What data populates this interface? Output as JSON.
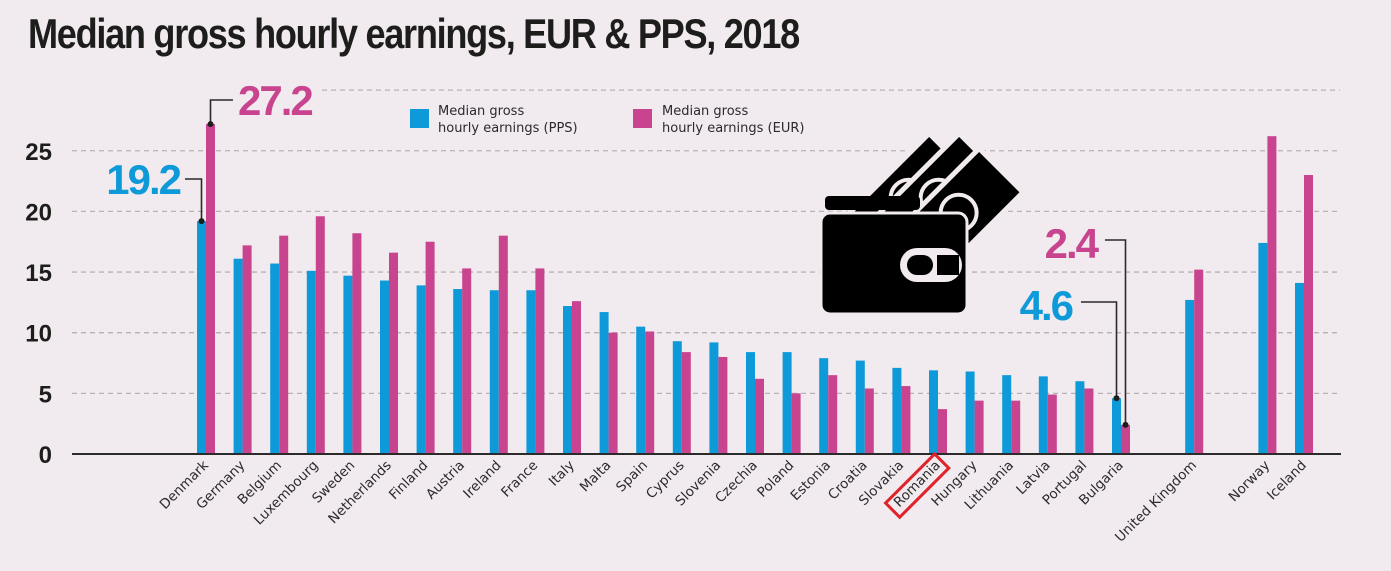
{
  "colors": {
    "pps": "#0e9ad9",
    "eur": "#c9448f",
    "text": "#1d1d1b",
    "gridline": "#b7b2b5",
    "highlight": "#e0222a",
    "background": "#f1eaee"
  },
  "chart_data": {
    "type": "bar",
    "title": "Median gross hourly earnings, EUR & PPS, 2018",
    "xlabel": "",
    "ylabel": "",
    "ylim": [
      0,
      30
    ],
    "yticks": [
      0,
      5,
      10,
      15,
      20,
      25
    ],
    "grid": true,
    "legend_position": "top-center",
    "categories": [
      "Denmark",
      "Germany",
      "Belgium",
      "Luxembourg",
      "Sweden",
      "Netherlands",
      "Finland",
      "Austria",
      "Ireland",
      "France",
      "Italy",
      "Malta",
      "Spain",
      "Cyprus",
      "Slovenia",
      "Czechia",
      "Poland",
      "Estonia",
      "Croatia",
      "Slovakia",
      "Romania",
      "Hungary",
      "Lithuania",
      "Latvia",
      "Portugal",
      "Bulgaria",
      "United Kingdom",
      "Norway",
      "Iceland"
    ],
    "group_gaps_before": {
      "United Kingdom": 1,
      "Norway": 1
    },
    "series": [
      {
        "name": "Median gross hourly earnings (PPS)",
        "key": "pps",
        "values": [
          19.2,
          16.1,
          15.7,
          15.1,
          14.7,
          14.3,
          13.9,
          13.6,
          13.5,
          13.5,
          12.2,
          11.7,
          10.5,
          9.3,
          9.2,
          8.4,
          8.4,
          7.9,
          7.7,
          7.1,
          6.9,
          6.8,
          6.5,
          6.4,
          6.0,
          4.6,
          12.7,
          17.4,
          14.1
        ]
      },
      {
        "name": "Median gross hourly earnings (EUR)",
        "key": "eur",
        "values": [
          27.2,
          17.2,
          18.0,
          19.6,
          18.2,
          16.6,
          17.5,
          15.3,
          18.0,
          15.3,
          12.6,
          10.0,
          10.1,
          8.4,
          8.0,
          6.2,
          5.0,
          6.5,
          5.4,
          5.6,
          3.7,
          4.4,
          4.4,
          4.9,
          5.4,
          2.4,
          15.2,
          26.2,
          23.0
        ]
      }
    ],
    "legend": [
      {
        "key": "pps",
        "line1": "Median gross",
        "line2": "hourly earnings (PPS)"
      },
      {
        "key": "eur",
        "line1": "Median gross",
        "line2": "hourly earnings (EUR)"
      }
    ],
    "annotations": [
      {
        "text": "19.2",
        "category": "Denmark",
        "series": "pps"
      },
      {
        "text": "27.2",
        "category": "Denmark",
        "series": "eur"
      },
      {
        "text": "2.4",
        "category": "Bulgaria",
        "series": "eur"
      },
      {
        "text": "4.6",
        "category": "Bulgaria",
        "series": "pps"
      }
    ],
    "highlighted_category": "Romania",
    "decoration": "wallet-with-banknotes-icon"
  }
}
